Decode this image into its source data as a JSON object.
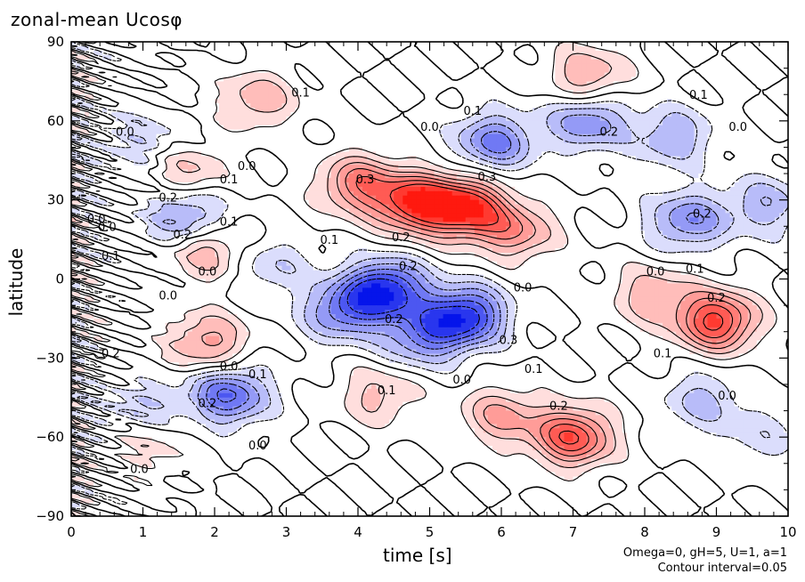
{
  "chart_data": {
    "type": "heatmap",
    "title": "zonal-mean Ucosφ",
    "xlabel": "time [s]",
    "ylabel": "latitude",
    "xlim": [
      0,
      10
    ],
    "ylim": [
      -90,
      90
    ],
    "x_ticks": [
      "0",
      "1",
      "2",
      "3",
      "4",
      "5",
      "6",
      "7",
      "8",
      "9",
      "10"
    ],
    "y_ticks": [
      "90",
      "60",
      "30",
      "0",
      "−30",
      "−60",
      "−90"
    ],
    "colorscale": {
      "positive": "#e8000b",
      "negative": "#0010e8",
      "zero": "#ffffff"
    },
    "features": [
      {
        "t": 4.8,
        "lat": 29,
        "amp": 0.33
      },
      {
        "t": 5.5,
        "lat": 27,
        "amp": 0.35
      },
      {
        "t": 6.2,
        "lat": 18,
        "amp": 0.18
      },
      {
        "t": 4.0,
        "lat": 36,
        "amp": 0.22
      },
      {
        "t": 2.6,
        "lat": 68,
        "amp": 0.14
      },
      {
        "t": 1.6,
        "lat": 40,
        "amp": 0.13
      },
      {
        "t": 1.9,
        "lat": 11,
        "amp": 0.15
      },
      {
        "t": 7.2,
        "lat": 77,
        "amp": 0.16
      },
      {
        "t": 9.0,
        "lat": -16,
        "amp": 0.32
      },
      {
        "t": 8.1,
        "lat": -6,
        "amp": 0.14
      },
      {
        "t": 1.9,
        "lat": -24,
        "amp": 0.18
      },
      {
        "t": 7.0,
        "lat": -60,
        "amp": 0.3
      },
      {
        "t": 6.0,
        "lat": -52,
        "amp": 0.16
      },
      {
        "t": 4.3,
        "lat": -44,
        "amp": 0.12
      },
      {
        "t": 1.1,
        "lat": -62,
        "amp": 0.1
      },
      {
        "t": 4.4,
        "lat": -4,
        "amp": -0.34
      },
      {
        "t": 5.5,
        "lat": -14,
        "amp": -0.33
      },
      {
        "t": 3.8,
        "lat": -12,
        "amp": -0.22
      },
      {
        "t": 4.9,
        "lat": -22,
        "amp": -0.2
      },
      {
        "t": 5.9,
        "lat": 52,
        "amp": -0.22
      },
      {
        "t": 7.2,
        "lat": 60,
        "amp": -0.2
      },
      {
        "t": 8.4,
        "lat": 54,
        "amp": -0.15
      },
      {
        "t": 8.6,
        "lat": 22,
        "amp": -0.2
      },
      {
        "t": 9.7,
        "lat": 28,
        "amp": -0.14
      },
      {
        "t": 1.6,
        "lat": 24,
        "amp": -0.2
      },
      {
        "t": 2.2,
        "lat": -44,
        "amp": -0.26
      },
      {
        "t": 1.0,
        "lat": -50,
        "amp": -0.12
      },
      {
        "t": 8.8,
        "lat": -46,
        "amp": -0.12
      },
      {
        "t": 9.6,
        "lat": -60,
        "amp": -0.08
      },
      {
        "t": 1.0,
        "lat": 52,
        "amp": -0.1
      },
      {
        "t": 2.8,
        "lat": 5,
        "amp": -0.1
      }
    ],
    "contour_labels": [
      {
        "text": "0.1",
        "t": 3.2,
        "lat": 71
      },
      {
        "text": "0.0",
        "t": 0.75,
        "lat": 56
      },
      {
        "text": "0.0",
        "t": 2.45,
        "lat": 43
      },
      {
        "text": "0.1",
        "t": 2.2,
        "lat": 38
      },
      {
        "text": "0.3",
        "t": 4.1,
        "lat": 38
      },
      {
        "text": "0.2",
        "t": 4.6,
        "lat": 16
      },
      {
        "text": "0.1",
        "t": 3.6,
        "lat": 15
      },
      {
        "text": "0.0",
        "t": 0.5,
        "lat": 20
      },
      {
        "text": "0.2",
        "t": 1.55,
        "lat": 17
      },
      {
        "text": "0.1",
        "t": 2.2,
        "lat": 22
      },
      {
        "text": "0.0",
        "t": 1.9,
        "lat": 3
      },
      {
        "text": "0.1",
        "t": 0.55,
        "lat": 9
      },
      {
        "text": "0.0",
        "t": 1.35,
        "lat": -6
      },
      {
        "text": "0.2",
        "t": 4.7,
        "lat": 5
      },
      {
        "text": "0.2",
        "t": 4.5,
        "lat": -15
      },
      {
        "text": "0.3",
        "t": 6.1,
        "lat": -23
      },
      {
        "text": "0.1",
        "t": 6.45,
        "lat": -34
      },
      {
        "text": "0.0",
        "t": 6.3,
        "lat": -3
      },
      {
        "text": "0.0",
        "t": 5.45,
        "lat": -38
      },
      {
        "text": "0.1",
        "t": 4.4,
        "lat": -42
      },
      {
        "text": "0.1",
        "t": 8.7,
        "lat": 4
      },
      {
        "text": "0.0",
        "t": 8.15,
        "lat": 3
      },
      {
        "text": "0.1",
        "t": 5.6,
        "lat": 64
      },
      {
        "text": "0.2",
        "t": 7.5,
        "lat": 56
      },
      {
        "text": "0.2",
        "t": 8.8,
        "lat": 25
      },
      {
        "text": "0.2",
        "t": 9.0,
        "lat": -7
      },
      {
        "text": "0.1",
        "t": 8.25,
        "lat": -28
      },
      {
        "text": "0.1",
        "t": 8.75,
        "lat": 70
      },
      {
        "text": "0.0",
        "t": 9.3,
        "lat": 58
      },
      {
        "text": "0.0",
        "t": 9.15,
        "lat": -44
      },
      {
        "text": "0.2",
        "t": 6.8,
        "lat": -48
      },
      {
        "text": "0.0",
        "t": 2.6,
        "lat": -63
      },
      {
        "text": "0.0",
        "t": 0.95,
        "lat": -72
      },
      {
        "text": "0.2",
        "t": 1.9,
        "lat": -47
      },
      {
        "text": "0.1",
        "t": 2.6,
        "lat": -36
      },
      {
        "text": "0.0",
        "t": 2.2,
        "lat": -33
      },
      {
        "text": "0.2",
        "t": 0.55,
        "lat": -28
      },
      {
        "text": "0.0",
        "t": 0.35,
        "lat": 23
      },
      {
        "text": "0.2",
        "t": 1.35,
        "lat": 31
      },
      {
        "text": "0.0",
        "t": 5.0,
        "lat": 58
      },
      {
        "text": "0.3",
        "t": 5.8,
        "lat": 39
      }
    ]
  },
  "footnote": {
    "params": "Omega=0, gH=5, U=1, a=1",
    "contour_interval": "Contour interval=0.05"
  }
}
